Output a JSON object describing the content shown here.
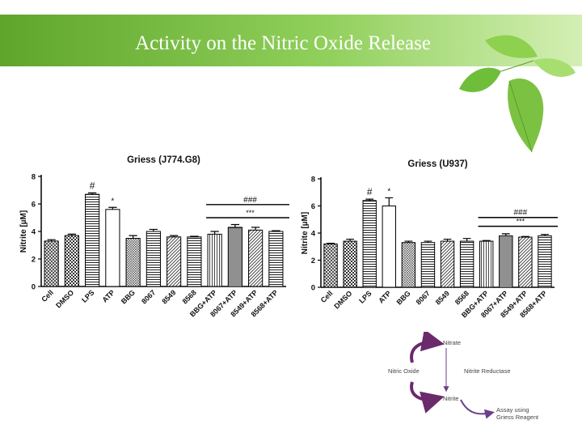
{
  "slide": {
    "title": "Activity on the Nitric Oxide Release"
  },
  "colors": {
    "banner_left": "#5fa52b",
    "banner_right": "#c8e8a0",
    "leaf": "#7cc242",
    "arrow": "#6b2a6b"
  },
  "chart_data": [
    {
      "type": "bar",
      "title": "Griess (J774.G8)",
      "ylabel": "Nitrite [µM]",
      "ylim": [
        0,
        8
      ],
      "yticks": [
        "0",
        "2",
        "4",
        "6",
        "8"
      ],
      "categories": [
        "Cell",
        "DMSO",
        "LPS",
        "ATP",
        "BBG",
        "8067",
        "8549",
        "8568",
        "BBG+ATP",
        "8067+ATP",
        "8549+ATP",
        "8568+ATP"
      ],
      "values": [
        3.3,
        3.7,
        6.7,
        5.6,
        3.5,
        4.0,
        3.6,
        3.6,
        3.8,
        4.3,
        4.1,
        4.0
      ],
      "errors": [
        0.1,
        0.1,
        0.1,
        0.15,
        0.2,
        0.15,
        0.1,
        0.05,
        0.2,
        0.2,
        0.2,
        0.05
      ],
      "patterns": [
        "cross",
        "checker",
        "hlines",
        "solid",
        "crossdense",
        "hlines",
        "diag",
        "hlines",
        "vlines",
        "hdense",
        "diag",
        "hlines"
      ],
      "annotations": [
        {
          "text": "#",
          "bar": 2
        },
        {
          "text": "*",
          "bar": 3
        },
        {
          "text": "###",
          "from": 8,
          "to": 11,
          "level": 5.95
        },
        {
          "text": "***",
          "from": 8,
          "to": 11,
          "level": 5.0
        }
      ],
      "grid": false
    },
    {
      "type": "bar",
      "title": "Griess (U937)",
      "ylabel": "Nitrite [µM]",
      "ylim": [
        0,
        8
      ],
      "yticks": [
        "0",
        "2",
        "4",
        "6",
        "8"
      ],
      "categories": [
        "Cell",
        "DMSO",
        "LPS",
        "ATP",
        "BBG",
        "8067",
        "8549",
        "8568",
        "BBG+ATP",
        "8067+ATP",
        "8549+ATP",
        "8568+ATP"
      ],
      "values": [
        3.2,
        3.4,
        6.4,
        6.0,
        3.3,
        3.3,
        3.4,
        3.4,
        3.4,
        3.8,
        3.7,
        3.8
      ],
      "errors": [
        0.05,
        0.15,
        0.1,
        0.6,
        0.1,
        0.1,
        0.15,
        0.2,
        0.05,
        0.15,
        0.05,
        0.1
      ],
      "patterns": [
        "cross",
        "checker",
        "hlines",
        "solid",
        "crossdense",
        "hlines",
        "diag",
        "hlines",
        "vlines",
        "hdense",
        "diag",
        "hlines"
      ],
      "annotations": [
        {
          "text": "#",
          "bar": 2
        },
        {
          "text": "*",
          "bar": 3
        },
        {
          "text": "###",
          "from": 8,
          "to": 11,
          "level": 5.15
        },
        {
          "text": "***",
          "from": 8,
          "to": 11,
          "level": 4.5
        }
      ],
      "grid": false
    }
  ],
  "diagram": {
    "nitrate": "Nitrate",
    "nitric_oxide": "Nitric Oxide",
    "nitrite_reductase": "Nitrite Reductase",
    "nitrite": "Nitrite",
    "assay_line1": "Assay using",
    "assay_line2": "Griess Reagent"
  }
}
